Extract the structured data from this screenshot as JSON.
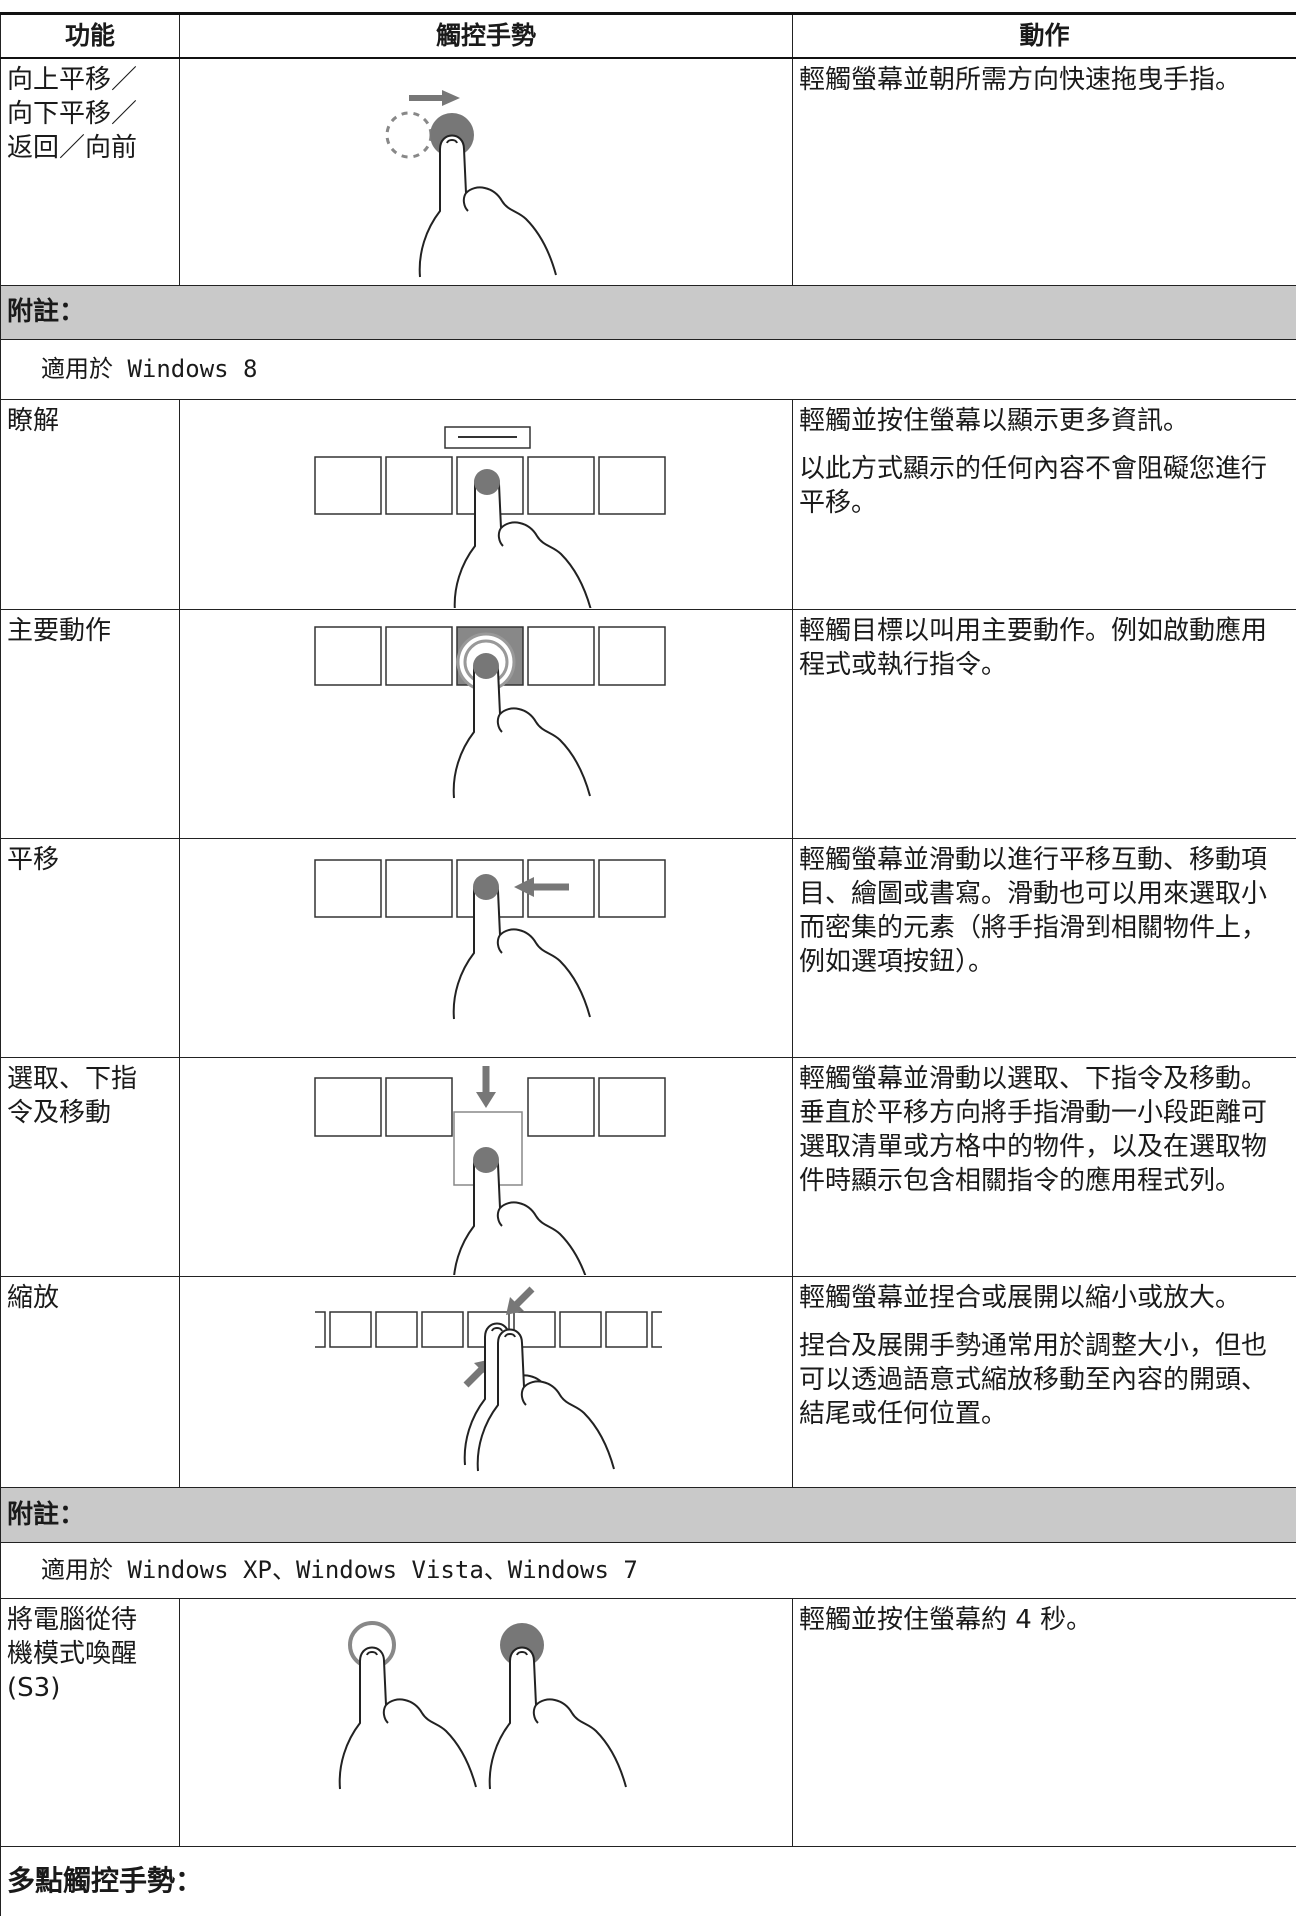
{
  "header": [
    "功能",
    "觸控手勢",
    "動作"
  ],
  "rows": [
    {
      "feature": "向上平移／向下平移／返回／向前",
      "action": [
        "輕觸螢幕並朝所需方向快速拖曳手指。"
      ]
    },
    {
      "feature": "瞭解",
      "action": [
        "輕觸並按住螢幕以顯示更多資訊。",
        "以此方式顯示的任何內容不會阻礙您進行平移。"
      ]
    },
    {
      "feature": "主要動作",
      "action": [
        "輕觸目標以叫用主要動作。例如啟動應用程式或執行指令。"
      ]
    },
    {
      "feature": "平移",
      "action": [
        "輕觸螢幕並滑動以進行平移互動、移動項目、繪圖或書寫。滑動也可以用來選取小而密集的元素（將手指滑到相關物件上，例如選項按鈕）。"
      ]
    },
    {
      "feature": "選取、下指令及移動",
      "action": [
        "輕觸螢幕並滑動以選取、下指令及移動。垂直於平移方向將手指滑動一小段距離可選取清單或方格中的物件，以及在選取物件時顯示包含相關指令的應用程式列。"
      ]
    },
    {
      "feature": "縮放",
      "action": [
        "輕觸螢幕並捏合或展開以縮小或放大。",
        "捏合及展開手勢通常用於調整大小，但也可以透過語意式縮放移動至內容的開頭、結尾或任何位置。"
      ]
    },
    {
      "feature": "將電腦從待機模式喚醒(S3)",
      "action": [
        "輕觸並按住螢幕約 4 秒。"
      ]
    }
  ],
  "notes": [
    {
      "label": "附註：",
      "text": "適用於 Windows 8"
    },
    {
      "label": "附註：",
      "text": "適用於 Windows XP、Windows Vista、Windows 7"
    }
  ],
  "footer": "多點觸控手勢："
}
